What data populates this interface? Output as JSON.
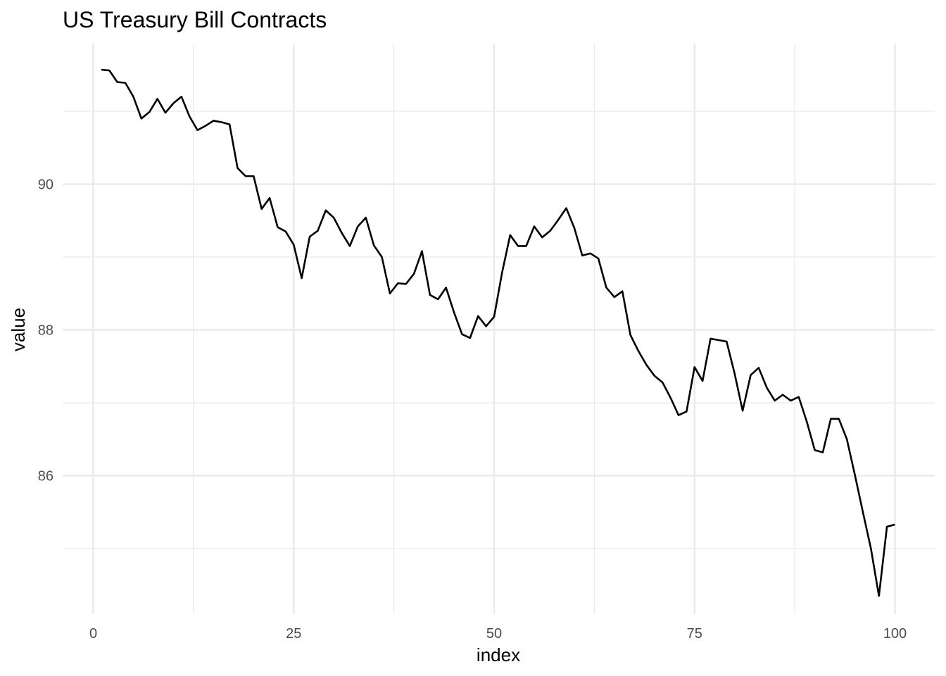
{
  "chart_data": {
    "type": "line",
    "title": "US Treasury Bill Contracts",
    "xlabel": "index",
    "ylabel": "value",
    "xlim": [
      0,
      100
    ],
    "ylim": [
      84.2,
      91.85
    ],
    "x_ticks": [
      0,
      25,
      50,
      75,
      100
    ],
    "y_ticks": [
      86,
      88,
      90
    ],
    "grid": true,
    "legend": "none",
    "series": [
      {
        "color": "#000000",
        "x": [
          1,
          2,
          3,
          4,
          5,
          6,
          7,
          8,
          9,
          10,
          11,
          12,
          13,
          14,
          15,
          16,
          17,
          18,
          19,
          20,
          21,
          22,
          23,
          24,
          25,
          26,
          27,
          28,
          29,
          30,
          31,
          32,
          33,
          34,
          35,
          36,
          37,
          38,
          39,
          40,
          41,
          42,
          43,
          44,
          45,
          46,
          47,
          48,
          49,
          50,
          51,
          52,
          53,
          54,
          55,
          56,
          57,
          58,
          59,
          60,
          61,
          62,
          63,
          64,
          65,
          66,
          67,
          68,
          69,
          70,
          71,
          72,
          73,
          74,
          75,
          76,
          77,
          78,
          79,
          80,
          81,
          82,
          83,
          84,
          85,
          86,
          87,
          88,
          89,
          90,
          91,
          92,
          93,
          94,
          95,
          96,
          97,
          98,
          99,
          100
        ],
        "values": [
          91.57,
          91.56,
          91.4,
          91.39,
          91.2,
          90.9,
          90.99,
          91.17,
          90.98,
          91.11,
          91.2,
          90.93,
          90.74,
          90.8,
          90.87,
          90.85,
          90.82,
          90.22,
          90.11,
          90.11,
          89.66,
          89.81,
          89.41,
          89.35,
          89.17,
          88.71,
          89.28,
          89.36,
          89.64,
          89.54,
          89.33,
          89.15,
          89.42,
          89.54,
          89.16,
          89.0,
          88.5,
          88.64,
          88.63,
          88.77,
          89.08,
          88.48,
          88.42,
          88.58,
          88.24,
          87.94,
          87.89,
          88.19,
          88.05,
          88.18,
          88.79,
          89.3,
          89.15,
          89.15,
          89.42,
          89.27,
          89.36,
          89.51,
          89.67,
          89.4,
          89.02,
          89.05,
          88.98,
          88.58,
          88.45,
          88.53,
          87.93,
          87.71,
          87.52,
          87.37,
          87.28,
          87.07,
          86.83,
          86.88,
          87.49,
          87.3,
          87.88,
          87.86,
          87.84,
          87.4,
          86.89,
          87.38,
          87.48,
          87.21,
          87.03,
          87.11,
          87.03,
          87.08,
          86.74,
          86.35,
          86.32,
          86.78,
          86.78,
          86.5,
          86.01,
          85.5,
          85.0,
          84.35,
          85.3,
          85.33
        ]
      }
    ]
  }
}
